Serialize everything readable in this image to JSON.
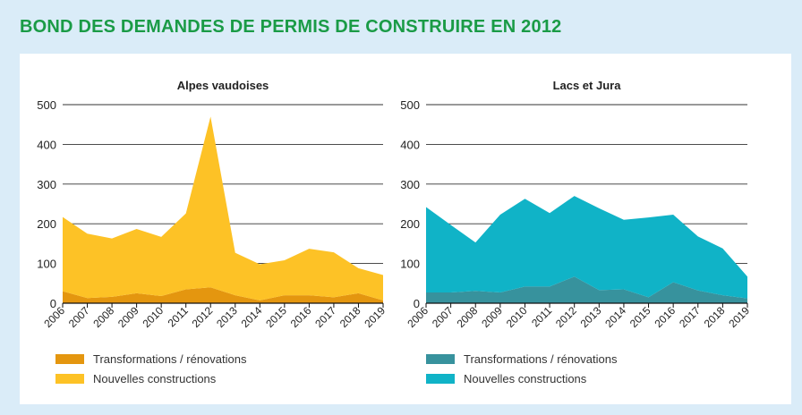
{
  "title": "BOND DES DEMANDES DE PERMIS DE CONSTRUIRE EN 2012",
  "chart_data": [
    {
      "type": "area",
      "stacked": true,
      "title": "Alpes vaudoises",
      "x": [
        "2006",
        "2007",
        "2008",
        "2009",
        "2010",
        "2011",
        "2012",
        "2013",
        "2014",
        "2015",
        "2016",
        "2017",
        "2018",
        "2019"
      ],
      "ylim": [
        0,
        500
      ],
      "yticks": [
        0,
        100,
        200,
        300,
        400,
        500
      ],
      "grid": true,
      "legend_position": "bottom-left",
      "series": [
        {
          "name": "Transformations / rénovations",
          "color": "#e4960f",
          "values": [
            30,
            13,
            16,
            25,
            18,
            35,
            40,
            20,
            7,
            20,
            20,
            15,
            25,
            7
          ]
        },
        {
          "name": "Nouvelles constructions",
          "color": "#fdc226",
          "values": [
            187,
            162,
            147,
            162,
            149,
            191,
            430,
            107,
            91,
            88,
            117,
            113,
            63,
            64
          ]
        }
      ]
    },
    {
      "type": "area",
      "stacked": true,
      "title": "Lacs et Jura",
      "x": [
        "2006",
        "2007",
        "2008",
        "2009",
        "2010",
        "2011",
        "2012",
        "2013",
        "2014",
        "2015",
        "2016",
        "2017",
        "2018",
        "2019"
      ],
      "ylim": [
        0,
        500
      ],
      "yticks": [
        0,
        100,
        200,
        300,
        400,
        500
      ],
      "grid": true,
      "legend_position": "bottom-left",
      "series": [
        {
          "name": "Transformations / rénovations",
          "color": "#37929d",
          "values": [
            27,
            27,
            31,
            27,
            42,
            42,
            67,
            33,
            35,
            15,
            53,
            32,
            20,
            12
          ]
        },
        {
          "name": "Nouvelles constructions",
          "color": "#10b3c7",
          "values": [
            215,
            170,
            122,
            196,
            221,
            185,
            203,
            206,
            175,
            201,
            170,
            136,
            118,
            55
          ]
        }
      ]
    }
  ]
}
